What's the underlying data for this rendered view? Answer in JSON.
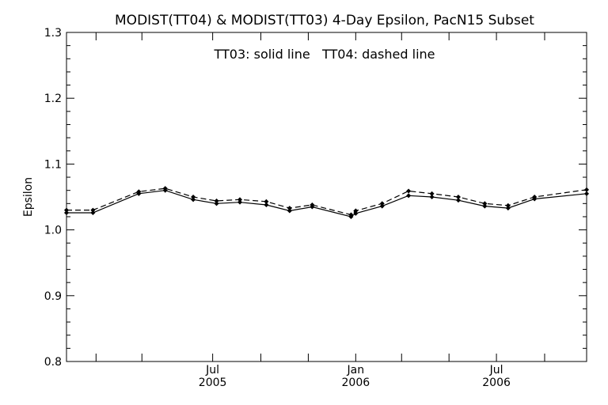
{
  "chart_data": {
    "type": "line",
    "title": "MODIST(TT04) & MODIST(TT03) 4-Day Epsilon, PacN15 Subset",
    "annotation": "TT03: solid line   TT04: dashed line",
    "xlabel": "",
    "ylabel": "Epsilon",
    "xlim": [
      "2004-12-25",
      "2006-10-25"
    ],
    "ylim": [
      0.8,
      1.3
    ],
    "yticks": [
      {
        "value": 0.8,
        "label": "0.8"
      },
      {
        "value": 0.9,
        "label": "0.9"
      },
      {
        "value": 1.0,
        "label": "1.0"
      },
      {
        "value": 1.1,
        "label": "1.1"
      },
      {
        "value": 1.2,
        "label": "1.2"
      },
      {
        "value": 1.3,
        "label": "1.3"
      }
    ],
    "xticks_labeled": [
      {
        "date": "2005-07-01",
        "month": "Jul",
        "year": "2005"
      },
      {
        "date": "2006-01-01",
        "month": "Jan",
        "year": "2006"
      },
      {
        "date": "2006-07-01",
        "month": "Jul",
        "year": "2006"
      }
    ],
    "xticks_minor": [
      "2005-02-01",
      "2005-04-01",
      "2005-09-01",
      "2005-11-01",
      "2006-03-01",
      "2006-05-01",
      "2006-09-01"
    ],
    "grid": false,
    "legend": "none",
    "series": [
      {
        "name": "TT03",
        "line_style": "solid",
        "x": [
          "2004-12-25",
          "2005-01-28",
          "2005-03-28",
          "2005-05-01",
          "2005-06-06",
          "2005-07-06",
          "2005-08-05",
          "2005-09-08",
          "2005-10-08",
          "2005-11-06",
          "2005-12-26",
          "2006-01-01",
          "2006-02-04",
          "2006-03-10",
          "2006-04-09",
          "2006-05-13",
          "2006-06-16",
          "2006-07-16",
          "2006-08-19",
          "2006-10-25"
        ],
        "values": [
          1.026,
          1.026,
          1.055,
          1.06,
          1.046,
          1.04,
          1.042,
          1.038,
          1.029,
          1.035,
          1.02,
          1.025,
          1.036,
          1.052,
          1.05,
          1.045,
          1.036,
          1.033,
          1.047,
          1.055
        ]
      },
      {
        "name": "TT04",
        "line_style": "dashed",
        "x": [
          "2004-12-25",
          "2005-01-28",
          "2005-03-28",
          "2005-05-01",
          "2005-06-06",
          "2005-07-06",
          "2005-08-05",
          "2005-09-08",
          "2005-10-08",
          "2005-11-06",
          "2005-12-26",
          "2006-01-01",
          "2006-02-04",
          "2006-03-10",
          "2006-04-09",
          "2006-05-13",
          "2006-06-16",
          "2006-07-16",
          "2006-08-19",
          "2006-10-25"
        ],
        "values": [
          1.03,
          1.03,
          1.058,
          1.063,
          1.05,
          1.044,
          1.046,
          1.043,
          1.033,
          1.038,
          1.023,
          1.029,
          1.04,
          1.059,
          1.055,
          1.05,
          1.04,
          1.037,
          1.05,
          1.061
        ]
      }
    ]
  }
}
